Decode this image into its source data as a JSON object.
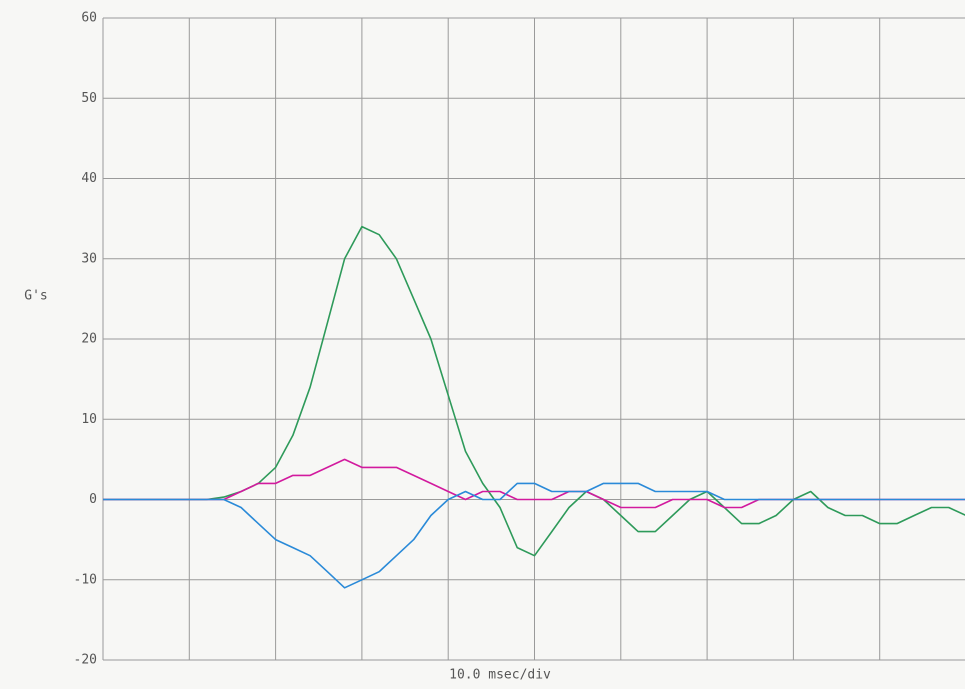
{
  "chart_data": {
    "type": "line",
    "y_label": "G's",
    "x_label": "10.0 msec/div",
    "x": [
      0,
      2,
      4,
      6,
      8,
      10,
      12,
      14,
      16,
      18,
      20,
      22,
      24,
      26,
      28,
      30,
      32,
      34,
      36,
      38,
      40,
      42,
      44,
      46,
      48,
      50,
      52,
      54,
      56,
      58,
      60,
      62,
      64,
      66,
      68,
      70,
      72,
      74,
      76,
      78,
      80,
      82,
      84,
      86,
      88,
      90,
      92,
      94,
      96,
      98,
      100
    ],
    "series": [
      {
        "color": "#2e9a5a",
        "values": [
          0,
          0,
          0,
          0,
          0,
          0,
          0,
          0.3,
          1,
          2,
          4,
          8,
          14,
          22,
          30,
          34,
          33,
          30,
          25,
          20,
          13,
          6,
          2,
          -1,
          -6,
          -7,
          -4,
          -1,
          1,
          0,
          -2,
          -4,
          -4,
          -2,
          0,
          1,
          -1,
          -3,
          -3,
          -2,
          0,
          1,
          -1,
          -2,
          -2,
          -3,
          -3,
          -2,
          -1,
          -1,
          -2
        ]
      },
      {
        "color": "#d21a9e",
        "values": [
          0,
          0,
          0,
          0,
          0,
          0,
          0,
          0,
          1,
          2,
          2,
          3,
          3,
          4,
          5,
          4,
          4,
          4,
          3,
          2,
          1,
          0,
          1,
          1,
          0,
          0,
          0,
          1,
          1,
          0,
          -1,
          -1,
          -1,
          0,
          0,
          0,
          -1,
          -1,
          0,
          0,
          0,
          0,
          0,
          0,
          0,
          0,
          0,
          0,
          0,
          0,
          0
        ]
      },
      {
        "color": "#2a8ad8",
        "values": [
          0,
          0,
          0,
          0,
          0,
          0,
          0,
          0,
          -1,
          -3,
          -5,
          -6,
          -7,
          -9,
          -11,
          -10,
          -9,
          -7,
          -5,
          -2,
          0,
          1,
          0,
          0,
          2,
          2,
          1,
          1,
          1,
          2,
          2,
          2,
          1,
          1,
          1,
          1,
          0,
          0,
          0,
          0,
          0,
          0,
          0,
          0,
          0,
          0,
          0,
          0,
          0,
          0,
          0
        ]
      }
    ],
    "xlim": [
      0,
      100
    ],
    "xticks": [
      0,
      10,
      20,
      30,
      40,
      50,
      60,
      70,
      80,
      90,
      100
    ],
    "ylim": [
      -20,
      60
    ],
    "yticks": [
      -20,
      -10,
      0,
      10,
      20,
      30,
      40,
      50,
      60
    ],
    "grid": true
  }
}
